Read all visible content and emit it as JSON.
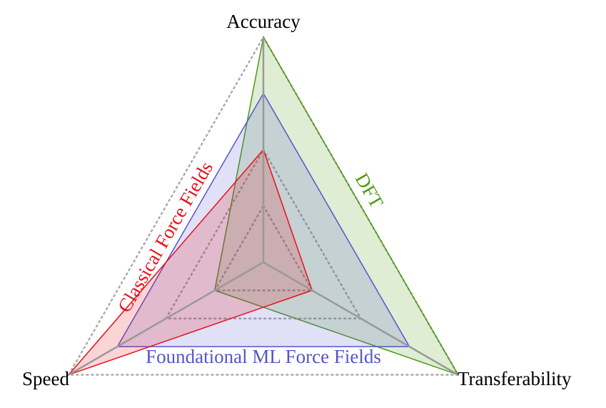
{
  "chart_data": {
    "type": "radar",
    "axes": [
      "Accuracy",
      "Transferability",
      "Speed"
    ],
    "rlim": [
      0,
      1
    ],
    "rticks": [
      0.25,
      0.5,
      1
    ],
    "series": [
      {
        "name": "DFT",
        "color": "#4f9a12",
        "values": [
          1,
          1,
          0.25
        ]
      },
      {
        "name": "Foundational ML Force Fields",
        "color": "#5555cc",
        "values": [
          0.75,
          0.75,
          0.75
        ]
      },
      {
        "name": "Classical Force Fields",
        "color": "#e8101a",
        "values": [
          0.5,
          0.25,
          1
        ]
      }
    ]
  }
}
